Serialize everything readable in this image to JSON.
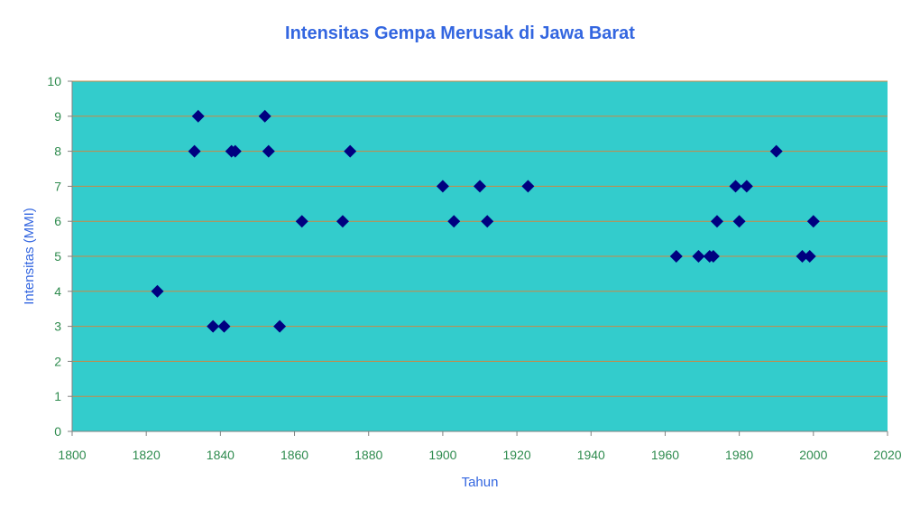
{
  "chart_data": {
    "type": "scatter",
    "title": "Intensitas Gempa Merusak di Jawa Barat",
    "xlabel": "Tahun",
    "ylabel": "Intensitas (MMI)",
    "xlim": [
      1800,
      2020
    ],
    "ylim": [
      0,
      10
    ],
    "xticks": [
      "1800",
      "1820",
      "1840",
      "1860",
      "1880",
      "1900",
      "1920",
      "1940",
      "1960",
      "1980",
      "2000",
      "2020"
    ],
    "yticks": [
      "0",
      "1",
      "2",
      "3",
      "4",
      "5",
      "6",
      "7",
      "8",
      "9",
      "10"
    ],
    "grid": "horizontal",
    "marker": "diamond",
    "colors": {
      "plot_background": "#33cccc",
      "gridline": "#cc8844",
      "marker": "#000080",
      "title": "#3366e0",
      "tick_label": "#2e8b4e"
    },
    "points": [
      {
        "x": 1823,
        "y": 4
      },
      {
        "x": 1833,
        "y": 8
      },
      {
        "x": 1834,
        "y": 9
      },
      {
        "x": 1838,
        "y": 3
      },
      {
        "x": 1841,
        "y": 3
      },
      {
        "x": 1843,
        "y": 8
      },
      {
        "x": 1844,
        "y": 8
      },
      {
        "x": 1852,
        "y": 9
      },
      {
        "x": 1853,
        "y": 8
      },
      {
        "x": 1856,
        "y": 3
      },
      {
        "x": 1862,
        "y": 6
      },
      {
        "x": 1873,
        "y": 6
      },
      {
        "x": 1875,
        "y": 8
      },
      {
        "x": 1900,
        "y": 7
      },
      {
        "x": 1903,
        "y": 6
      },
      {
        "x": 1910,
        "y": 7
      },
      {
        "x": 1912,
        "y": 6
      },
      {
        "x": 1923,
        "y": 7
      },
      {
        "x": 1963,
        "y": 5
      },
      {
        "x": 1969,
        "y": 5
      },
      {
        "x": 1972,
        "y": 5
      },
      {
        "x": 1973,
        "y": 5
      },
      {
        "x": 1974,
        "y": 6
      },
      {
        "x": 1979,
        "y": 7
      },
      {
        "x": 1980,
        "y": 6
      },
      {
        "x": 1982,
        "y": 7
      },
      {
        "x": 1990,
        "y": 8
      },
      {
        "x": 1997,
        "y": 5
      },
      {
        "x": 1999,
        "y": 5
      },
      {
        "x": 2000,
        "y": 6
      }
    ]
  }
}
